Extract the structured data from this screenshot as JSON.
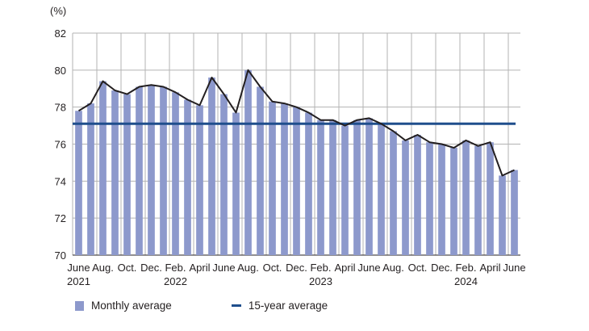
{
  "chart_data": {
    "type": "bar",
    "unit_label": "(%)",
    "ylim": [
      70,
      82
    ],
    "yticks": [
      "70",
      "72",
      "74",
      "76",
      "78",
      "80",
      "82"
    ],
    "grid": true,
    "legend_position": "bottom-left",
    "x_tick_labels": [
      {
        "index": 0,
        "line1": "June",
        "line2": "2021"
      },
      {
        "index": 2,
        "line1": "Aug.",
        "line2": ""
      },
      {
        "index": 4,
        "line1": "Oct.",
        "line2": ""
      },
      {
        "index": 6,
        "line1": "Dec.",
        "line2": ""
      },
      {
        "index": 8,
        "line1": "Feb.",
        "line2": "2022"
      },
      {
        "index": 10,
        "line1": "April",
        "line2": ""
      },
      {
        "index": 12,
        "line1": "June",
        "line2": ""
      },
      {
        "index": 14,
        "line1": "Aug.",
        "line2": ""
      },
      {
        "index": 16,
        "line1": "Oct.",
        "line2": ""
      },
      {
        "index": 18,
        "line1": "Dec.",
        "line2": ""
      },
      {
        "index": 20,
        "line1": "Feb.",
        "line2": "2023"
      },
      {
        "index": 22,
        "line1": "April",
        "line2": ""
      },
      {
        "index": 24,
        "line1": "June",
        "line2": ""
      },
      {
        "index": 26,
        "line1": "Aug.",
        "line2": ""
      },
      {
        "index": 28,
        "line1": "Oct.",
        "line2": ""
      },
      {
        "index": 30,
        "line1": "Dec.",
        "line2": ""
      },
      {
        "index": 32,
        "line1": "Feb.",
        "line2": "2024"
      },
      {
        "index": 34,
        "line1": "April",
        "line2": ""
      },
      {
        "index": 36,
        "line1": "June",
        "line2": ""
      }
    ],
    "months": [
      "2021-06",
      "2021-07",
      "2021-08",
      "2021-09",
      "2021-10",
      "2021-11",
      "2021-12",
      "2022-01",
      "2022-02",
      "2022-03",
      "2022-04",
      "2022-05",
      "2022-06",
      "2022-07",
      "2022-08",
      "2022-09",
      "2022-10",
      "2022-11",
      "2022-12",
      "2023-01",
      "2023-02",
      "2023-03",
      "2023-04",
      "2023-05",
      "2023-06",
      "2023-07",
      "2023-08",
      "2023-09",
      "2023-10",
      "2023-11",
      "2023-12",
      "2024-01",
      "2024-02",
      "2024-03",
      "2024-04",
      "2024-05",
      "2024-06"
    ],
    "series": [
      {
        "name": "Monthly average",
        "kind": "bar",
        "color": "#8d99cc",
        "values": [
          77.8,
          78.2,
          79.4,
          78.9,
          78.7,
          79.1,
          79.2,
          79.1,
          78.8,
          78.4,
          78.1,
          79.6,
          78.7,
          77.7,
          80.0,
          79.1,
          78.3,
          78.2,
          78.0,
          77.7,
          77.3,
          77.3,
          77.0,
          77.3,
          77.4,
          77.1,
          76.7,
          76.2,
          76.5,
          76.1,
          76.0,
          75.8,
          76.2,
          75.9,
          76.1,
          74.3,
          74.6
        ]
      },
      {
        "name": "",
        "kind": "line",
        "color": "#231f20",
        "values": [
          77.8,
          78.2,
          79.4,
          78.9,
          78.7,
          79.1,
          79.2,
          79.1,
          78.8,
          78.4,
          78.1,
          79.6,
          78.7,
          77.7,
          80.0,
          79.1,
          78.3,
          78.2,
          78.0,
          77.7,
          77.3,
          77.3,
          77.0,
          77.3,
          77.4,
          77.1,
          76.7,
          76.2,
          76.5,
          76.1,
          76.0,
          75.8,
          76.2,
          75.9,
          76.1,
          74.3,
          74.6
        ]
      },
      {
        "name": "15-year average",
        "kind": "hline",
        "color": "#1f4e8c",
        "value": 77.1
      }
    ]
  },
  "legend": {
    "monthly_label": "Monthly average",
    "avg_label": "15-year average",
    "bar_color": "#8d99cc",
    "avg_color": "#1f4e8c"
  }
}
